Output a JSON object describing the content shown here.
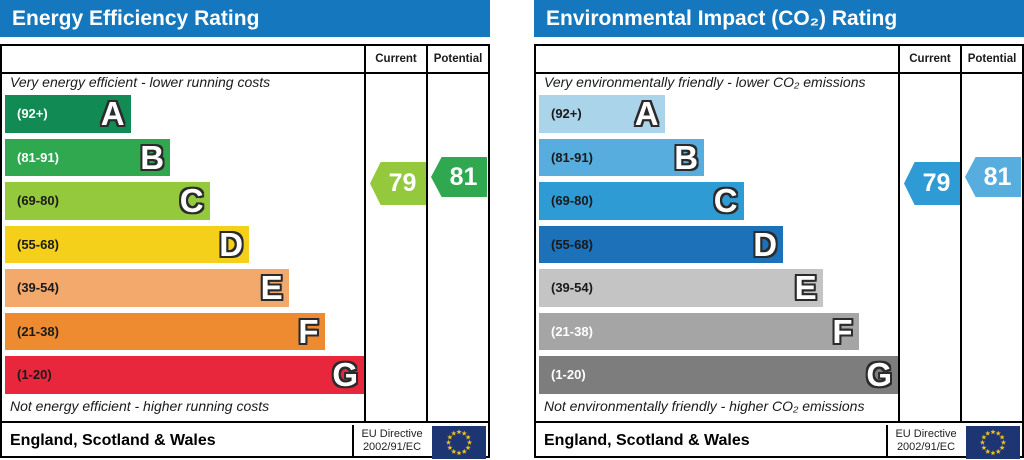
{
  "page": {
    "background": "#ffffff"
  },
  "chart_data": [
    {
      "type": "bar",
      "title": "Energy Efficiency Rating",
      "header_color": "#1577bd",
      "top_caption": "Very energy efficient - lower running costs",
      "bottom_caption": "Not energy efficient - higher running costs",
      "categories": [
        "A",
        "B",
        "C",
        "D",
        "E",
        "F",
        "G"
      ],
      "bands": [
        {
          "letter": "A",
          "range": "(92+)",
          "width_pct": 35,
          "color": "#118a54",
          "range_color": "#ffffff"
        },
        {
          "letter": "B",
          "range": "(81-91)",
          "width_pct": 46,
          "color": "#2fa850",
          "range_color": "#ffffff"
        },
        {
          "letter": "C",
          "range": "(69-80)",
          "width_pct": 57,
          "color": "#94c83d",
          "range_color": "#1a1a1a"
        },
        {
          "letter": "D",
          "range": "(55-68)",
          "width_pct": 68,
          "color": "#f4d01a",
          "range_color": "#1a1a1a"
        },
        {
          "letter": "E",
          "range": "(39-54)",
          "width_pct": 79,
          "color": "#f3a96c",
          "range_color": "#1a1a1a"
        },
        {
          "letter": "F",
          "range": "(21-38)",
          "width_pct": 89,
          "color": "#ee8b31",
          "range_color": "#1a1a1a"
        },
        {
          "letter": "G",
          "range": "(1-20)",
          "width_pct": 100,
          "color": "#e8273c",
          "range_color": "#1a1a1a"
        }
      ],
      "current": {
        "label": "Current",
        "value": 79,
        "band": "C",
        "color": "#94c83d"
      },
      "potential": {
        "label": "Potential",
        "value": 81,
        "band": "B",
        "color": "#2fa850"
      },
      "footer": {
        "region": "England, Scotland & Wales",
        "directive_line1": "EU Directive",
        "directive_line2": "2002/91/EC",
        "flag": {
          "background": "#1e3574",
          "stars": "#edc21b"
        }
      }
    },
    {
      "type": "bar",
      "title": "Environmental Impact (CO₂) Rating",
      "header_color": "#1577bd",
      "top_caption": "Very environmentally friendly - lower CO₂ emissions",
      "bottom_caption": "Not environmentally friendly - higher CO₂ emissions",
      "categories": [
        "A",
        "B",
        "C",
        "D",
        "E",
        "F",
        "G"
      ],
      "bands": [
        {
          "letter": "A",
          "range": "(92+)",
          "width_pct": 35,
          "color": "#a9d4ea",
          "range_color": "#1a1a1a"
        },
        {
          "letter": "B",
          "range": "(81-91)",
          "width_pct": 46,
          "color": "#57addd",
          "range_color": "#1a1a1a"
        },
        {
          "letter": "C",
          "range": "(69-80)",
          "width_pct": 57,
          "color": "#2f9bd5",
          "range_color": "#1a1a1a"
        },
        {
          "letter": "D",
          "range": "(55-68)",
          "width_pct": 68,
          "color": "#1d71b8",
          "range_color": "#1a1a1a"
        },
        {
          "letter": "E",
          "range": "(39-54)",
          "width_pct": 79,
          "color": "#c4c4c4",
          "range_color": "#1a1a1a"
        },
        {
          "letter": "F",
          "range": "(21-38)",
          "width_pct": 89,
          "color": "#a5a5a5",
          "range_color": "#ffffff"
        },
        {
          "letter": "G",
          "range": "(1-20)",
          "width_pct": 100,
          "color": "#7d7d7d",
          "range_color": "#ffffff"
        }
      ],
      "current": {
        "label": "Current",
        "value": 79,
        "band": "C",
        "color": "#2f9bd5"
      },
      "potential": {
        "label": "Potential",
        "value": 81,
        "band": "B",
        "color": "#57addd"
      },
      "footer": {
        "region": "England, Scotland & Wales",
        "directive_line1": "EU Directive",
        "directive_line2": "2002/91/EC",
        "flag": {
          "background": "#1e3574",
          "stars": "#edc21b"
        }
      }
    }
  ]
}
